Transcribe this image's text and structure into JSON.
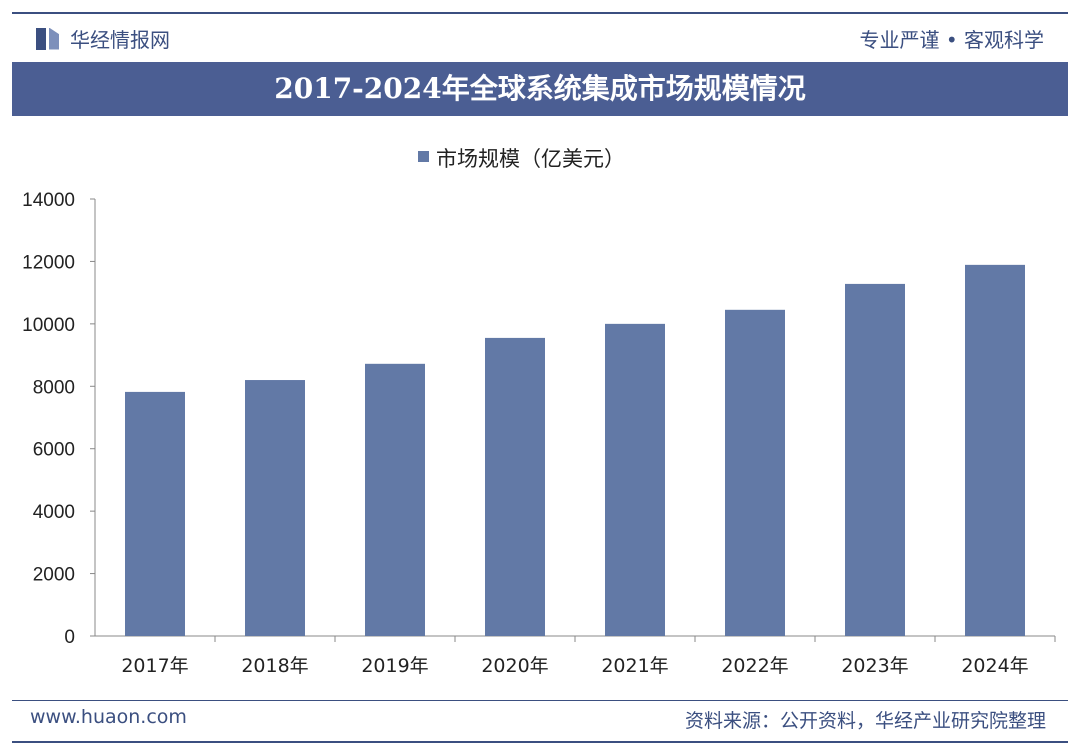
{
  "header": {
    "brand": "华经情报网",
    "slogan": "专业严谨 • 客观科学"
  },
  "footer": {
    "site": "www.huaon.com",
    "source": "资料来源：公开资料，华经产业研究院整理"
  },
  "colors": {
    "bar": "#6279a6",
    "title_bar": "#4b5e93",
    "brand": "#3b4f80"
  },
  "chart_data": {
    "type": "bar",
    "title": "2017-2024年全球系统集成市场规模情况",
    "categories": [
      "2017年",
      "2018年",
      "2019年",
      "2020年",
      "2021年",
      "2022年",
      "2023年",
      "2024年"
    ],
    "series": [
      {
        "name": "市场规模（亿美元）",
        "values": [
          7820,
          8200,
          8720,
          9550,
          10000,
          10450,
          11280,
          11890
        ]
      }
    ],
    "ylim": [
      0,
      14000
    ],
    "yticks": [
      0,
      2000,
      4000,
      6000,
      8000,
      10000,
      12000,
      14000
    ],
    "grid": false,
    "legend": "top-center"
  }
}
